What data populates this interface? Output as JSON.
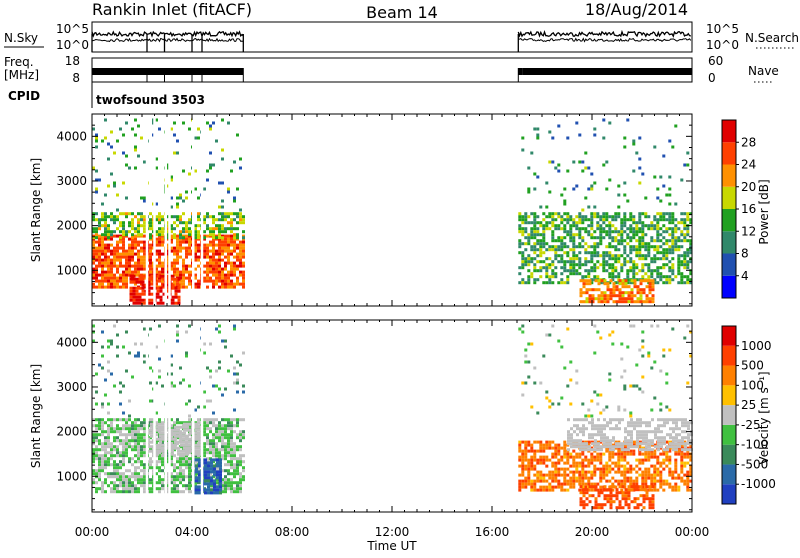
{
  "header": {
    "station": "Rankin Inlet (fitACF)",
    "beam": "Beam 14",
    "date": "18/Aug/2014"
  },
  "meta_panels": {
    "nsky": {
      "label": "N.Sky",
      "ticks": [
        "10^5",
        "10^0"
      ]
    },
    "nsearch": {
      "label": "N.Search",
      "ticks": [
        "10^5",
        "10^0"
      ]
    },
    "freq": {
      "label_line1": "Freq.",
      "label_line2": "[MHz]",
      "ticks": [
        "18",
        "8"
      ]
    },
    "nave": {
      "label": "Nave",
      "ticks": [
        "60",
        "0"
      ]
    },
    "cpid": {
      "label": "CPID",
      "value": "twofsound 3503"
    }
  },
  "chart_data": [
    {
      "type": "heatmap",
      "name": "power",
      "ylabel": "Slant Range [km]",
      "yticks": [
        1000,
        2000,
        3000,
        4000
      ],
      "ylim": [
        200,
        4500
      ],
      "xlim_hours": [
        0,
        24
      ],
      "xticks": [
        "00:00",
        "04:00",
        "08:00",
        "12:00",
        "16:00",
        "20:00",
        "00:00"
      ],
      "colorbar_label": "Power [dB]",
      "colorbar_ticks": [
        "28",
        "24",
        "20",
        "16",
        "12",
        "8",
        "4"
      ],
      "colors": [
        "#0000ff",
        "#2050b0",
        "#30886a",
        "#20a020",
        "#c8d800",
        "#ff9000",
        "#ff4000",
        "#e00000"
      ],
      "data_windows_hours": [
        [
          0,
          6.05
        ],
        [
          17.05,
          24
        ]
      ]
    },
    {
      "type": "heatmap",
      "name": "velocity",
      "ylabel": "Slant Range [km]",
      "yticks": [
        1000,
        2000,
        3000,
        4000
      ],
      "ylim": [
        200,
        4500
      ],
      "xlim_hours": [
        0,
        24
      ],
      "xticks": [
        "00:00",
        "04:00",
        "08:00",
        "12:00",
        "16:00",
        "20:00",
        "00:00"
      ],
      "xlabel": "Time UT",
      "colorbar_label": "Velocity [m s⁻¹]",
      "colorbar_ticks": [
        "1000",
        "500",
        "100",
        "25",
        "-25",
        "-100",
        "-500",
        "-1000"
      ],
      "colors": [
        "#2040c0",
        "#2a6aa8",
        "#3a8a5a",
        "#40c040",
        "#c0c0c0",
        "#ffc000",
        "#ff8000",
        "#ff4000",
        "#e00000"
      ],
      "data_windows_hours": [
        [
          0,
          6.05
        ],
        [
          17.05,
          24
        ]
      ]
    }
  ]
}
